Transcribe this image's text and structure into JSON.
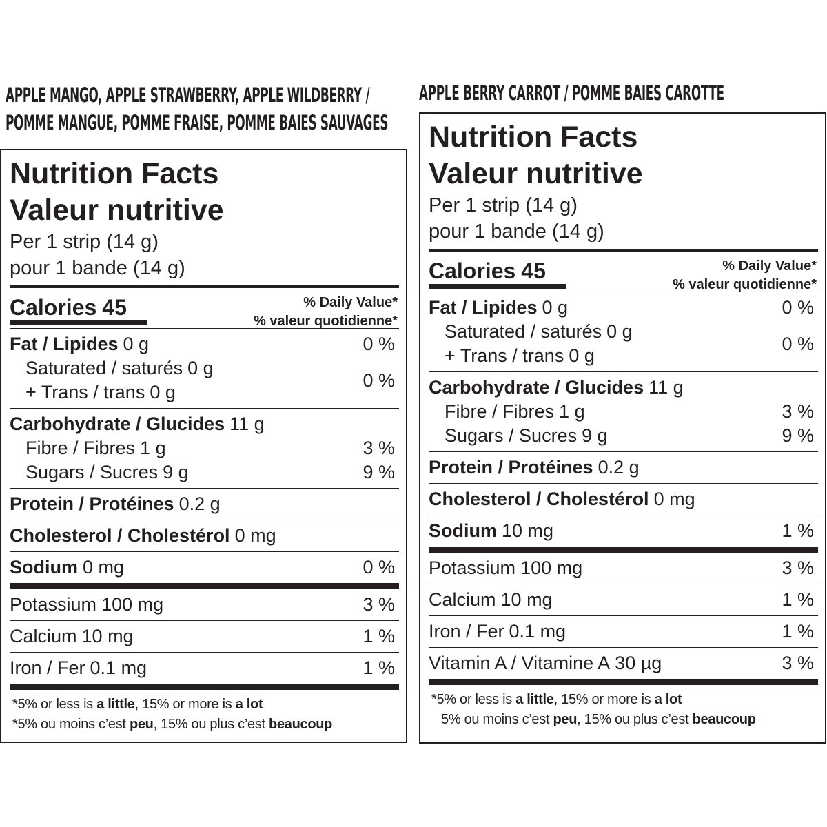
{
  "panels": [
    {
      "heading": [
        "APPLE MANGO, APPLE STRAWBERRY, APPLE WILDBERRY /",
        "POMME MANGUE, POMME FRAISE, POMME BAIES SAUVAGES"
      ],
      "title": [
        "Nutrition Facts",
        "Valeur nutritive"
      ],
      "serving": [
        "Per 1 strip (14 g)",
        "pour 1 bande (14 g)"
      ],
      "calories": {
        "label": "Calories",
        "value": 45
      },
      "dv_header": [
        "% Daily Value*",
        "% valeur quotidienne*"
      ],
      "sections": [
        {
          "bold": true,
          "rows": [
            {
              "lines": [
                {
                  "label": "Fat / Lipides",
                  "amount": "0 g"
                }
              ],
              "dv": "0 %"
            },
            {
              "lines": [
                {
                  "label": "Saturated / saturés",
                  "amount": "0 g"
                },
                {
                  "label": "+ Trans / trans",
                  "amount": "0 g"
                }
              ],
              "dv": "0 %"
            }
          ]
        },
        {
          "bold": true,
          "rows": [
            {
              "lines": [
                {
                  "label": "Carbohydrate / Glucides",
                  "amount": "11 g"
                }
              ]
            },
            {
              "lines": [
                {
                  "label": "Fibre / Fibres",
                  "amount": "1 g"
                }
              ],
              "dv": "3 %"
            },
            {
              "lines": [
                {
                  "label": "Sugars / Sucres",
                  "amount": "9 g"
                }
              ],
              "dv": "9 %"
            }
          ]
        },
        {
          "bold": true,
          "rows": [
            {
              "lines": [
                {
                  "label": "Protein / Protéines",
                  "amount": "0.2 g"
                }
              ]
            }
          ]
        },
        {
          "bold": true,
          "rows": [
            {
              "lines": [
                {
                  "label": "Cholesterol / Cholestérol",
                  "amount": "0 mg"
                }
              ]
            }
          ]
        },
        {
          "bold": true,
          "thick_after": true,
          "rows": [
            {
              "lines": [
                {
                  "label": "Sodium",
                  "amount": "0 mg"
                }
              ],
              "dv": "0 %"
            }
          ]
        },
        {
          "bold": false,
          "rows": [
            {
              "lines": [
                {
                  "label": "Potassium",
                  "amount": "100 mg"
                }
              ],
              "dv": "3 %"
            }
          ]
        },
        {
          "bold": false,
          "rows": [
            {
              "lines": [
                {
                  "label": "Calcium",
                  "amount": "10 mg"
                }
              ],
              "dv": "1 %"
            }
          ]
        },
        {
          "bold": false,
          "thick_after": true,
          "rows": [
            {
              "lines": [
                {
                  "label": "Iron / Fer",
                  "amount": "0.1 mg"
                }
              ],
              "dv": "1 %"
            }
          ]
        }
      ],
      "footnote": [
        [
          "*5% or less is ",
          "a little",
          ", 15% or more is ",
          "a lot"
        ],
        [
          "*5% ou moins c’est ",
          "peu",
          ", 15% ou plus c’est ",
          "beaucoup"
        ]
      ]
    },
    {
      "heading": [
        "APPLE BERRY CARROT / POMME BAIES CAROTTE"
      ],
      "title": [
        "Nutrition Facts",
        "Valeur nutritive"
      ],
      "serving": [
        "Per 1 strip (14 g)",
        "pour 1 bande (14 g)"
      ],
      "calories": {
        "label": "Calories",
        "value": 45
      },
      "dv_header": [
        "% Daily Value*",
        "% valeur quotidienne*"
      ],
      "sections": [
        {
          "bold": true,
          "rows": [
            {
              "lines": [
                {
                  "label": "Fat / Lipides",
                  "amount": "0 g"
                }
              ],
              "dv": "0 %"
            },
            {
              "lines": [
                {
                  "label": "Saturated / saturés",
                  "amount": "0 g"
                },
                {
                  "label": "+ Trans / trans",
                  "amount": "0 g"
                }
              ],
              "dv": "0 %"
            }
          ]
        },
        {
          "bold": true,
          "rows": [
            {
              "lines": [
                {
                  "label": "Carbohydrate / Glucides",
                  "amount": "11 g"
                }
              ]
            },
            {
              "lines": [
                {
                  "label": "Fibre / Fibres",
                  "amount": "1 g"
                }
              ],
              "dv": "3 %"
            },
            {
              "lines": [
                {
                  "label": "Sugars / Sucres",
                  "amount": "9 g"
                }
              ],
              "dv": "9 %"
            }
          ]
        },
        {
          "bold": true,
          "rows": [
            {
              "lines": [
                {
                  "label": "Protein / Protéines",
                  "amount": "0.2 g"
                }
              ]
            }
          ]
        },
        {
          "bold": true,
          "rows": [
            {
              "lines": [
                {
                  "label": "Cholesterol / Cholestérol",
                  "amount": "0 mg"
                }
              ]
            }
          ]
        },
        {
          "bold": true,
          "thick_after": true,
          "rows": [
            {
              "lines": [
                {
                  "label": "Sodium",
                  "amount": "10 mg"
                }
              ],
              "dv": "1 %"
            }
          ]
        },
        {
          "bold": false,
          "rows": [
            {
              "lines": [
                {
                  "label": "Potassium",
                  "amount": "100 mg"
                }
              ],
              "dv": "3 %"
            }
          ]
        },
        {
          "bold": false,
          "rows": [
            {
              "lines": [
                {
                  "label": "Calcium",
                  "amount": "10 mg"
                }
              ],
              "dv": "1 %"
            }
          ]
        },
        {
          "bold": false,
          "rows": [
            {
              "lines": [
                {
                  "label": "Iron / Fer",
                  "amount": "0.1 mg"
                }
              ],
              "dv": "1 %"
            }
          ]
        },
        {
          "bold": false,
          "thick_after": true,
          "rows": [
            {
              "lines": [
                {
                  "label": "Vitamin A / Vitamine A",
                  "amount": "30 µg"
                }
              ],
              "dv": "3 %"
            }
          ]
        }
      ],
      "footnote": [
        [
          "*5% or less is ",
          "a little",
          ", 15% or more is ",
          "a lot"
        ],
        [
          "5% ou moins c’est ",
          "peu",
          ", 15% ou plus c’est ",
          "beaucoup"
        ]
      ]
    }
  ]
}
